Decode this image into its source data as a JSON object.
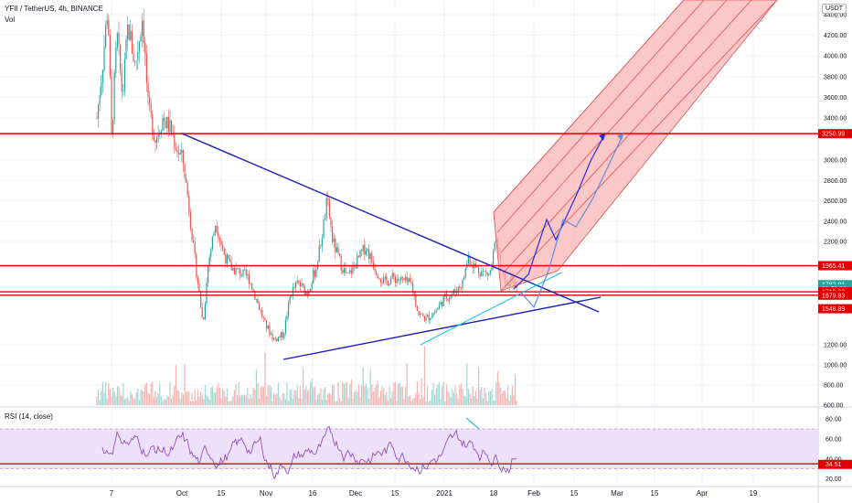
{
  "header": {
    "symbol": "YFII / TetherUS, 4h, BINANCE",
    "volume_label": "Vol",
    "rsi_label": "RSI (14, close)",
    "currency_button": "USDT"
  },
  "colors": {
    "up": "#26a69a",
    "down": "#ef5350",
    "hline": "#e00000",
    "trend": "#1a1fb8",
    "cyan": "#27c4e8",
    "path_dark": "#2b2bd8",
    "path_light": "#5c8fe0",
    "rsi_line": "#8a3db8",
    "rsi_band": "#ede0fa",
    "channel_fill": "#f9b4b4",
    "channel_line": "#e05050"
  },
  "chart_data": [
    {
      "type": "line",
      "title": "YFII / TetherUS, 4h, BINANCE",
      "price_axis_ticks": [
        4400,
        4200,
        4000,
        3800,
        3600,
        3400,
        3000,
        2800,
        2600,
        2400,
        2200,
        1200,
        1000,
        800,
        600
      ],
      "time_axis_ticks": [
        "7",
        "Oct",
        "15",
        "Nov",
        "16",
        "Dec",
        "15",
        "2021",
        "18",
        "Feb",
        "15",
        "Mar",
        "15",
        "Apr",
        "19"
      ],
      "horizontal_lines": [
        3250.99,
        1965.41,
        1713.0,
        1679.83
      ],
      "price_tags": [
        {
          "label": "3250.99",
          "value": 3250.99,
          "color": "#e00000"
        },
        {
          "label": "1965.41",
          "value": 1965.41,
          "color": "#e00000"
        },
        {
          "label": "1782.01",
          "value": 1782.01,
          "color": "#26a69a"
        },
        {
          "label": "01:58:18",
          "value": 1740,
          "color": "#26a69a"
        },
        {
          "label": "1713.00",
          "value": 1713.0,
          "color": "#e00000"
        },
        {
          "label": "1679.83",
          "value": 1679.83,
          "color": "#e00000"
        },
        {
          "label": "1548.89",
          "value": 1548.89,
          "color": "#e00000"
        }
      ],
      "last_price": 1782.01
    },
    {
      "type": "line",
      "title": "RSI (14, close)",
      "y_ticks": [
        80,
        60,
        40,
        20
      ],
      "band": [
        30,
        70
      ],
      "levels": [
        35
      ],
      "last_value_label": "34.51",
      "last_value": 34.51
    }
  ]
}
